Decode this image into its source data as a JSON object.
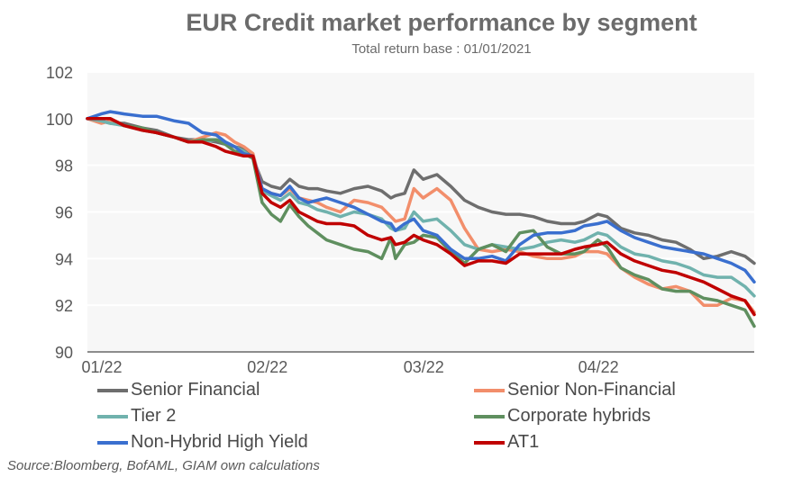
{
  "chart_data": {
    "type": "line",
    "title": "EUR Credit market performance by segment",
    "subtitle": "Total return base : 01/01/2021",
    "xlabel": "",
    "ylabel": "",
    "ylim": [
      90,
      102
    ],
    "yticks": [
      90,
      92,
      94,
      96,
      98,
      100,
      102
    ],
    "xlim": [
      0,
      145
    ],
    "xticks": [
      {
        "label": "01/22",
        "value": 0
      },
      {
        "label": "02/22",
        "value": 36
      },
      {
        "label": "03/22",
        "value": 70
      },
      {
        "label": "04/22",
        "value": 108
      }
    ],
    "grid": true,
    "legend_position": "bottom",
    "source": "Source:Bloomberg, BofAML, GIAM own calculations",
    "series": [
      {
        "name": "Senior Financial",
        "color": "#6e6e6e",
        "x": [
          0,
          3,
          5,
          8,
          12,
          15,
          19,
          22,
          25,
          28,
          30,
          32,
          34,
          36,
          38,
          40,
          42,
          44,
          46,
          48,
          50,
          52,
          55,
          58,
          61,
          64,
          66,
          67,
          69,
          71,
          73,
          76,
          79,
          82,
          85,
          88,
          91,
          94,
          97,
          100,
          103,
          106,
          108,
          111,
          113,
          116,
          119,
          122,
          125,
          128,
          131,
          134,
          137,
          140,
          143,
          145
        ],
        "y": [
          100,
          99.9,
          99.8,
          99.8,
          99.6,
          99.5,
          99.2,
          99.1,
          99.1,
          99.0,
          98.9,
          98.8,
          98.7,
          98.3,
          97.3,
          97.1,
          97.0,
          97.4,
          97.1,
          97.0,
          97.0,
          96.9,
          96.8,
          97.0,
          97.1,
          96.9,
          96.6,
          96.7,
          96.8,
          97.8,
          97.4,
          97.6,
          97.1,
          96.5,
          96.2,
          96.0,
          95.9,
          95.9,
          95.8,
          95.6,
          95.5,
          95.5,
          95.6,
          95.9,
          95.8,
          95.3,
          95.1,
          95.0,
          94.8,
          94.7,
          94.4,
          94.0,
          94.1,
          94.3,
          94.1,
          93.8
        ]
      },
      {
        "name": "Senior Non-Financial",
        "color": "#f28e6b",
        "x": [
          0,
          3,
          5,
          8,
          12,
          15,
          19,
          22,
          25,
          28,
          30,
          32,
          34,
          36,
          38,
          40,
          42,
          44,
          46,
          48,
          50,
          52,
          55,
          58,
          61,
          64,
          66,
          67,
          69,
          71,
          73,
          76,
          79,
          82,
          85,
          88,
          91,
          94,
          97,
          100,
          103,
          106,
          108,
          111,
          113,
          116,
          119,
          122,
          125,
          128,
          131,
          134,
          137,
          140,
          143,
          145
        ],
        "y": [
          100,
          99.8,
          99.9,
          99.7,
          99.5,
          99.4,
          99.2,
          99.0,
          99.2,
          99.4,
          99.3,
          99.0,
          98.8,
          98.5,
          97.0,
          96.8,
          96.7,
          97.0,
          96.6,
          96.5,
          96.4,
          96.2,
          96.0,
          96.5,
          96.4,
          96.2,
          95.8,
          95.6,
          95.7,
          97.0,
          96.6,
          97.0,
          96.5,
          95.3,
          94.4,
          94.3,
          94.4,
          94.3,
          94.1,
          94.0,
          94.0,
          94.1,
          94.3,
          94.3,
          94.2,
          93.6,
          93.2,
          92.9,
          92.7,
          92.8,
          92.6,
          92.0,
          92.0,
          92.3,
          92.2,
          91.7
        ]
      },
      {
        "name": "Tier 2",
        "color": "#70b2ad",
        "x": [
          0,
          3,
          5,
          8,
          12,
          15,
          19,
          22,
          25,
          28,
          30,
          32,
          34,
          36,
          38,
          40,
          42,
          44,
          46,
          48,
          50,
          52,
          55,
          58,
          61,
          64,
          66,
          67,
          69,
          71,
          73,
          76,
          79,
          82,
          85,
          88,
          91,
          94,
          97,
          100,
          103,
          106,
          108,
          111,
          113,
          116,
          119,
          122,
          125,
          128,
          131,
          134,
          137,
          140,
          143,
          145
        ],
        "y": [
          100,
          99.9,
          99.8,
          99.7,
          99.5,
          99.4,
          99.2,
          99.0,
          99.0,
          99.1,
          99.0,
          98.8,
          98.6,
          98.3,
          96.9,
          96.7,
          96.5,
          96.8,
          96.4,
          96.3,
          96.1,
          96.0,
          95.8,
          96.0,
          95.9,
          95.7,
          95.3,
          95.2,
          95.3,
          96.0,
          95.6,
          95.7,
          95.2,
          94.6,
          94.4,
          94.6,
          94.5,
          94.4,
          94.5,
          94.7,
          94.8,
          94.7,
          94.8,
          95.1,
          95.0,
          94.5,
          94.2,
          94.1,
          93.9,
          93.8,
          93.6,
          93.3,
          93.2,
          93.2,
          92.8,
          92.4
        ]
      },
      {
        "name": "Corporate hybrids",
        "color": "#5f8f5f",
        "x": [
          0,
          3,
          5,
          8,
          12,
          15,
          19,
          22,
          25,
          28,
          30,
          32,
          34,
          36,
          38,
          40,
          42,
          44,
          46,
          48,
          50,
          52,
          55,
          58,
          61,
          64,
          66,
          67,
          69,
          71,
          73,
          76,
          79,
          82,
          85,
          88,
          91,
          94,
          97,
          100,
          103,
          106,
          108,
          111,
          113,
          116,
          119,
          122,
          125,
          128,
          131,
          134,
          137,
          140,
          143,
          145
        ],
        "y": [
          100,
          100,
          100,
          99.7,
          99.6,
          99.4,
          99.2,
          99.0,
          99.1,
          99.1,
          98.9,
          98.6,
          98.5,
          98.3,
          96.4,
          95.9,
          95.6,
          96.3,
          95.8,
          95.4,
          95.1,
          94.8,
          94.6,
          94.4,
          94.3,
          94.0,
          94.9,
          94.0,
          94.6,
          94.7,
          95.0,
          94.9,
          94.3,
          93.8,
          94.4,
          94.6,
          94.3,
          95.1,
          95.2,
          94.5,
          94.2,
          94.2,
          94.3,
          94.8,
          94.5,
          93.6,
          93.3,
          93.1,
          92.7,
          92.6,
          92.6,
          92.3,
          92.2,
          92.0,
          91.8,
          91.1
        ]
      },
      {
        "name": "Non-Hybrid High Yield",
        "color": "#3a6fcf",
        "x": [
          0,
          3,
          5,
          8,
          12,
          15,
          19,
          22,
          25,
          28,
          30,
          32,
          34,
          36,
          38,
          40,
          42,
          44,
          46,
          48,
          50,
          52,
          55,
          58,
          61,
          64,
          66,
          67,
          69,
          71,
          73,
          76,
          79,
          82,
          85,
          88,
          91,
          94,
          97,
          100,
          103,
          106,
          108,
          111,
          113,
          116,
          119,
          122,
          125,
          128,
          131,
          134,
          137,
          140,
          143,
          145
        ],
        "y": [
          100,
          100.2,
          100.3,
          100.2,
          100.1,
          100.1,
          99.9,
          99.8,
          99.4,
          99.3,
          99.0,
          98.8,
          98.5,
          98.4,
          97.0,
          96.8,
          96.7,
          97.1,
          96.6,
          96.4,
          96.5,
          96.6,
          96.4,
          96.2,
          95.9,
          95.6,
          95.5,
          95.2,
          95.5,
          95.7,
          95.2,
          95.0,
          94.4,
          94.0,
          94.0,
          94.1,
          93.9,
          94.6,
          95.0,
          95.1,
          95.1,
          95.2,
          95.4,
          95.5,
          95.6,
          95.2,
          94.9,
          94.7,
          94.5,
          94.4,
          94.3,
          94.2,
          94.0,
          93.8,
          93.5,
          93.0
        ]
      },
      {
        "name": "AT1",
        "color": "#c00000",
        "x": [
          0,
          3,
          5,
          8,
          12,
          15,
          19,
          22,
          25,
          28,
          30,
          32,
          34,
          36,
          38,
          40,
          42,
          44,
          46,
          48,
          50,
          52,
          55,
          58,
          61,
          64,
          66,
          67,
          69,
          71,
          73,
          76,
          79,
          82,
          85,
          88,
          91,
          94,
          97,
          100,
          103,
          106,
          108,
          111,
          113,
          116,
          119,
          122,
          125,
          128,
          131,
          134,
          137,
          140,
          143,
          145
        ],
        "y": [
          100,
          100,
          100,
          99.7,
          99.5,
          99.4,
          99.2,
          99.0,
          99.0,
          98.8,
          98.6,
          98.5,
          98.4,
          98.4,
          96.8,
          96.4,
          96.2,
          96.5,
          96.0,
          95.8,
          95.6,
          95.5,
          95.5,
          95.4,
          95.0,
          94.8,
          94.9,
          94.6,
          94.7,
          95.0,
          94.8,
          94.6,
          94.2,
          93.7,
          93.9,
          93.9,
          93.8,
          94.2,
          94.2,
          94.2,
          94.2,
          94.4,
          94.5,
          94.6,
          94.7,
          94.2,
          93.9,
          93.7,
          93.5,
          93.4,
          93.2,
          93.0,
          92.7,
          92.4,
          92.2,
          91.6
        ]
      }
    ]
  },
  "legend": {
    "items": [
      {
        "label": "Senior Financial",
        "color": "#6e6e6e"
      },
      {
        "label": "Senior Non-Financial",
        "color": "#f28e6b"
      },
      {
        "label": "Tier 2",
        "color": "#70b2ad"
      },
      {
        "label": "Corporate hybrids",
        "color": "#5f8f5f"
      },
      {
        "label": "Non-Hybrid High Yield",
        "color": "#3a6fcf"
      },
      {
        "label": "AT1",
        "color": "#c00000"
      }
    ]
  }
}
